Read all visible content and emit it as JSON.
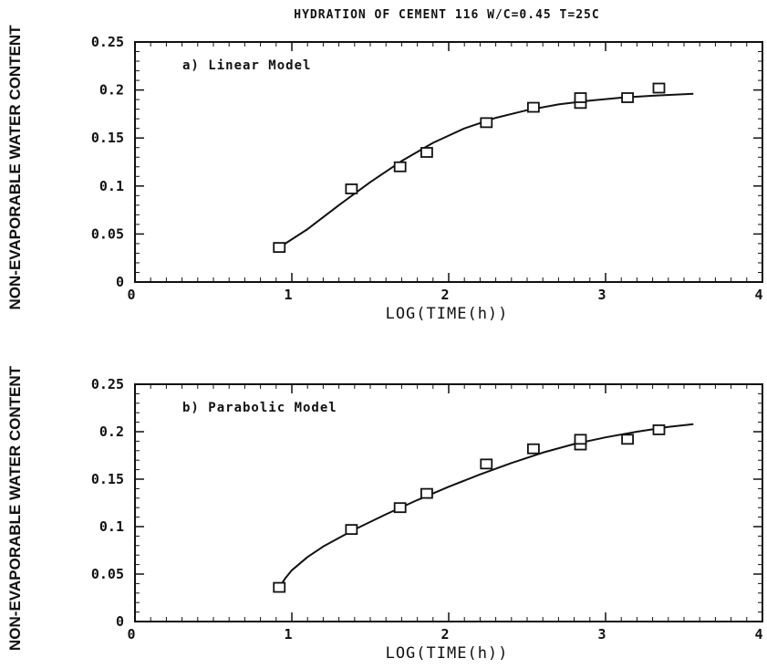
{
  "figure_title": "HYDRATION OF CEMENT 116 W/C=0.45 T=25C",
  "chart_data": [
    {
      "type": "scatter",
      "panel_label": "a) Linear Model",
      "xlabel": "LOG(TIME(h))",
      "ylabel": "NON-EVAPORABLE WATER CONTENT",
      "xlim": [
        0,
        4
      ],
      "ylim": [
        0,
        0.25
      ],
      "x_ticks": [
        "0",
        "1",
        "2",
        "3",
        "4"
      ],
      "y_ticks": [
        "0",
        "0.05",
        "0.1",
        "0.15",
        "0.2",
        "0.25"
      ],
      "grid": false,
      "series": [
        {
          "marker": "open-square",
          "points": [
            {
              "x": 0.92,
              "y": 0.036
            },
            {
              "x": 1.38,
              "y": 0.097
            },
            {
              "x": 1.69,
              "y": 0.12
            },
            {
              "x": 1.86,
              "y": 0.135
            },
            {
              "x": 2.24,
              "y": 0.166
            },
            {
              "x": 2.54,
              "y": 0.182
            },
            {
              "x": 2.84,
              "y": 0.186
            },
            {
              "x": 2.84,
              "y": 0.192
            },
            {
              "x": 3.14,
              "y": 0.192
            },
            {
              "x": 3.34,
              "y": 0.202
            }
          ]
        },
        {
          "line": "fitted-curve",
          "points": [
            {
              "x": 0.92,
              "y": 0.036
            },
            {
              "x": 1.1,
              "y": 0.055
            },
            {
              "x": 1.3,
              "y": 0.08
            },
            {
              "x": 1.5,
              "y": 0.104
            },
            {
              "x": 1.7,
              "y": 0.126
            },
            {
              "x": 1.9,
              "y": 0.145
            },
            {
              "x": 2.1,
              "y": 0.16
            },
            {
              "x": 2.3,
              "y": 0.171
            },
            {
              "x": 2.5,
              "y": 0.179
            },
            {
              "x": 2.7,
              "y": 0.185
            },
            {
              "x": 2.9,
              "y": 0.189
            },
            {
              "x": 3.1,
              "y": 0.192
            },
            {
              "x": 3.3,
              "y": 0.194
            },
            {
              "x": 3.56,
              "y": 0.196
            }
          ]
        }
      ]
    },
    {
      "type": "scatter",
      "panel_label": "b) Parabolic Model",
      "xlabel": "LOG(TIME(h))",
      "ylabel": "NON-EVAPORABLE WATER CONTENT",
      "xlim": [
        0,
        4
      ],
      "ylim": [
        0,
        0.25
      ],
      "x_ticks": [
        "0",
        "1",
        "2",
        "3",
        "4"
      ],
      "y_ticks": [
        "0",
        "0.05",
        "0.1",
        "0.15",
        "0.2",
        "0.25"
      ],
      "grid": false,
      "series": [
        {
          "marker": "open-square",
          "points": [
            {
              "x": 0.92,
              "y": 0.036
            },
            {
              "x": 1.38,
              "y": 0.097
            },
            {
              "x": 1.69,
              "y": 0.12
            },
            {
              "x": 1.86,
              "y": 0.135
            },
            {
              "x": 2.24,
              "y": 0.166
            },
            {
              "x": 2.54,
              "y": 0.182
            },
            {
              "x": 2.84,
              "y": 0.186
            },
            {
              "x": 2.84,
              "y": 0.192
            },
            {
              "x": 3.14,
              "y": 0.192
            },
            {
              "x": 3.34,
              "y": 0.202
            }
          ]
        },
        {
          "line": "fitted-curve",
          "points": [
            {
              "x": 0.92,
              "y": 0.036
            },
            {
              "x": 0.96,
              "y": 0.046
            },
            {
              "x": 1.0,
              "y": 0.054
            },
            {
              "x": 1.1,
              "y": 0.068
            },
            {
              "x": 1.2,
              "y": 0.079
            },
            {
              "x": 1.4,
              "y": 0.097
            },
            {
              "x": 1.6,
              "y": 0.113
            },
            {
              "x": 1.8,
              "y": 0.128
            },
            {
              "x": 2.0,
              "y": 0.142
            },
            {
              "x": 2.2,
              "y": 0.155
            },
            {
              "x": 2.4,
              "y": 0.167
            },
            {
              "x": 2.6,
              "y": 0.178
            },
            {
              "x": 2.8,
              "y": 0.187
            },
            {
              "x": 3.0,
              "y": 0.194
            },
            {
              "x": 3.2,
              "y": 0.2
            },
            {
              "x": 3.4,
              "y": 0.205
            },
            {
              "x": 3.56,
              "y": 0.208
            }
          ]
        }
      ]
    }
  ]
}
